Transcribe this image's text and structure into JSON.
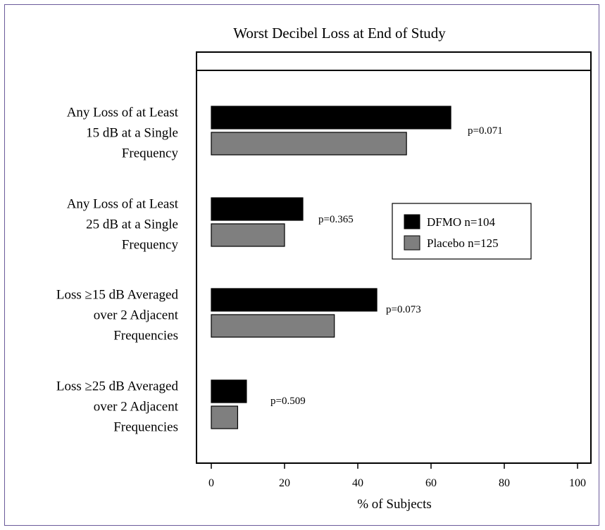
{
  "chart_data": {
    "type": "bar",
    "orientation": "horizontal",
    "title": "Worst Decibel Loss at End of Study",
    "xlabel": "% of Subjects",
    "ylabel": "",
    "xlim": [
      0,
      100
    ],
    "xticks": [
      0,
      20,
      40,
      60,
      80,
      100
    ],
    "grid": false,
    "legend_position": "right",
    "categories": [
      [
        "Any Loss of at Least",
        "15 dB at a Single",
        "Frequency"
      ],
      [
        "Any Loss of at Least",
        "25 dB at a Single",
        "Frequency"
      ],
      [
        "Loss ≥15 dB Averaged",
        "over 2 Adjacent",
        "Frequencies"
      ],
      [
        "Loss ≥25 dB Averaged",
        "over 2 Adjacent",
        "Frequencies"
      ]
    ],
    "series": [
      {
        "name": "DFMO n=104",
        "color": "#000000",
        "values": [
          65.4,
          25.0,
          45.2,
          9.6
        ]
      },
      {
        "name": "Placebo n=125",
        "color": "#7f7f7f",
        "values": [
          53.3,
          20.0,
          33.6,
          7.2
        ]
      }
    ],
    "annotations": [
      "p=0.071",
      "p=0.365",
      "p=0.073",
      "p=0.509"
    ]
  }
}
